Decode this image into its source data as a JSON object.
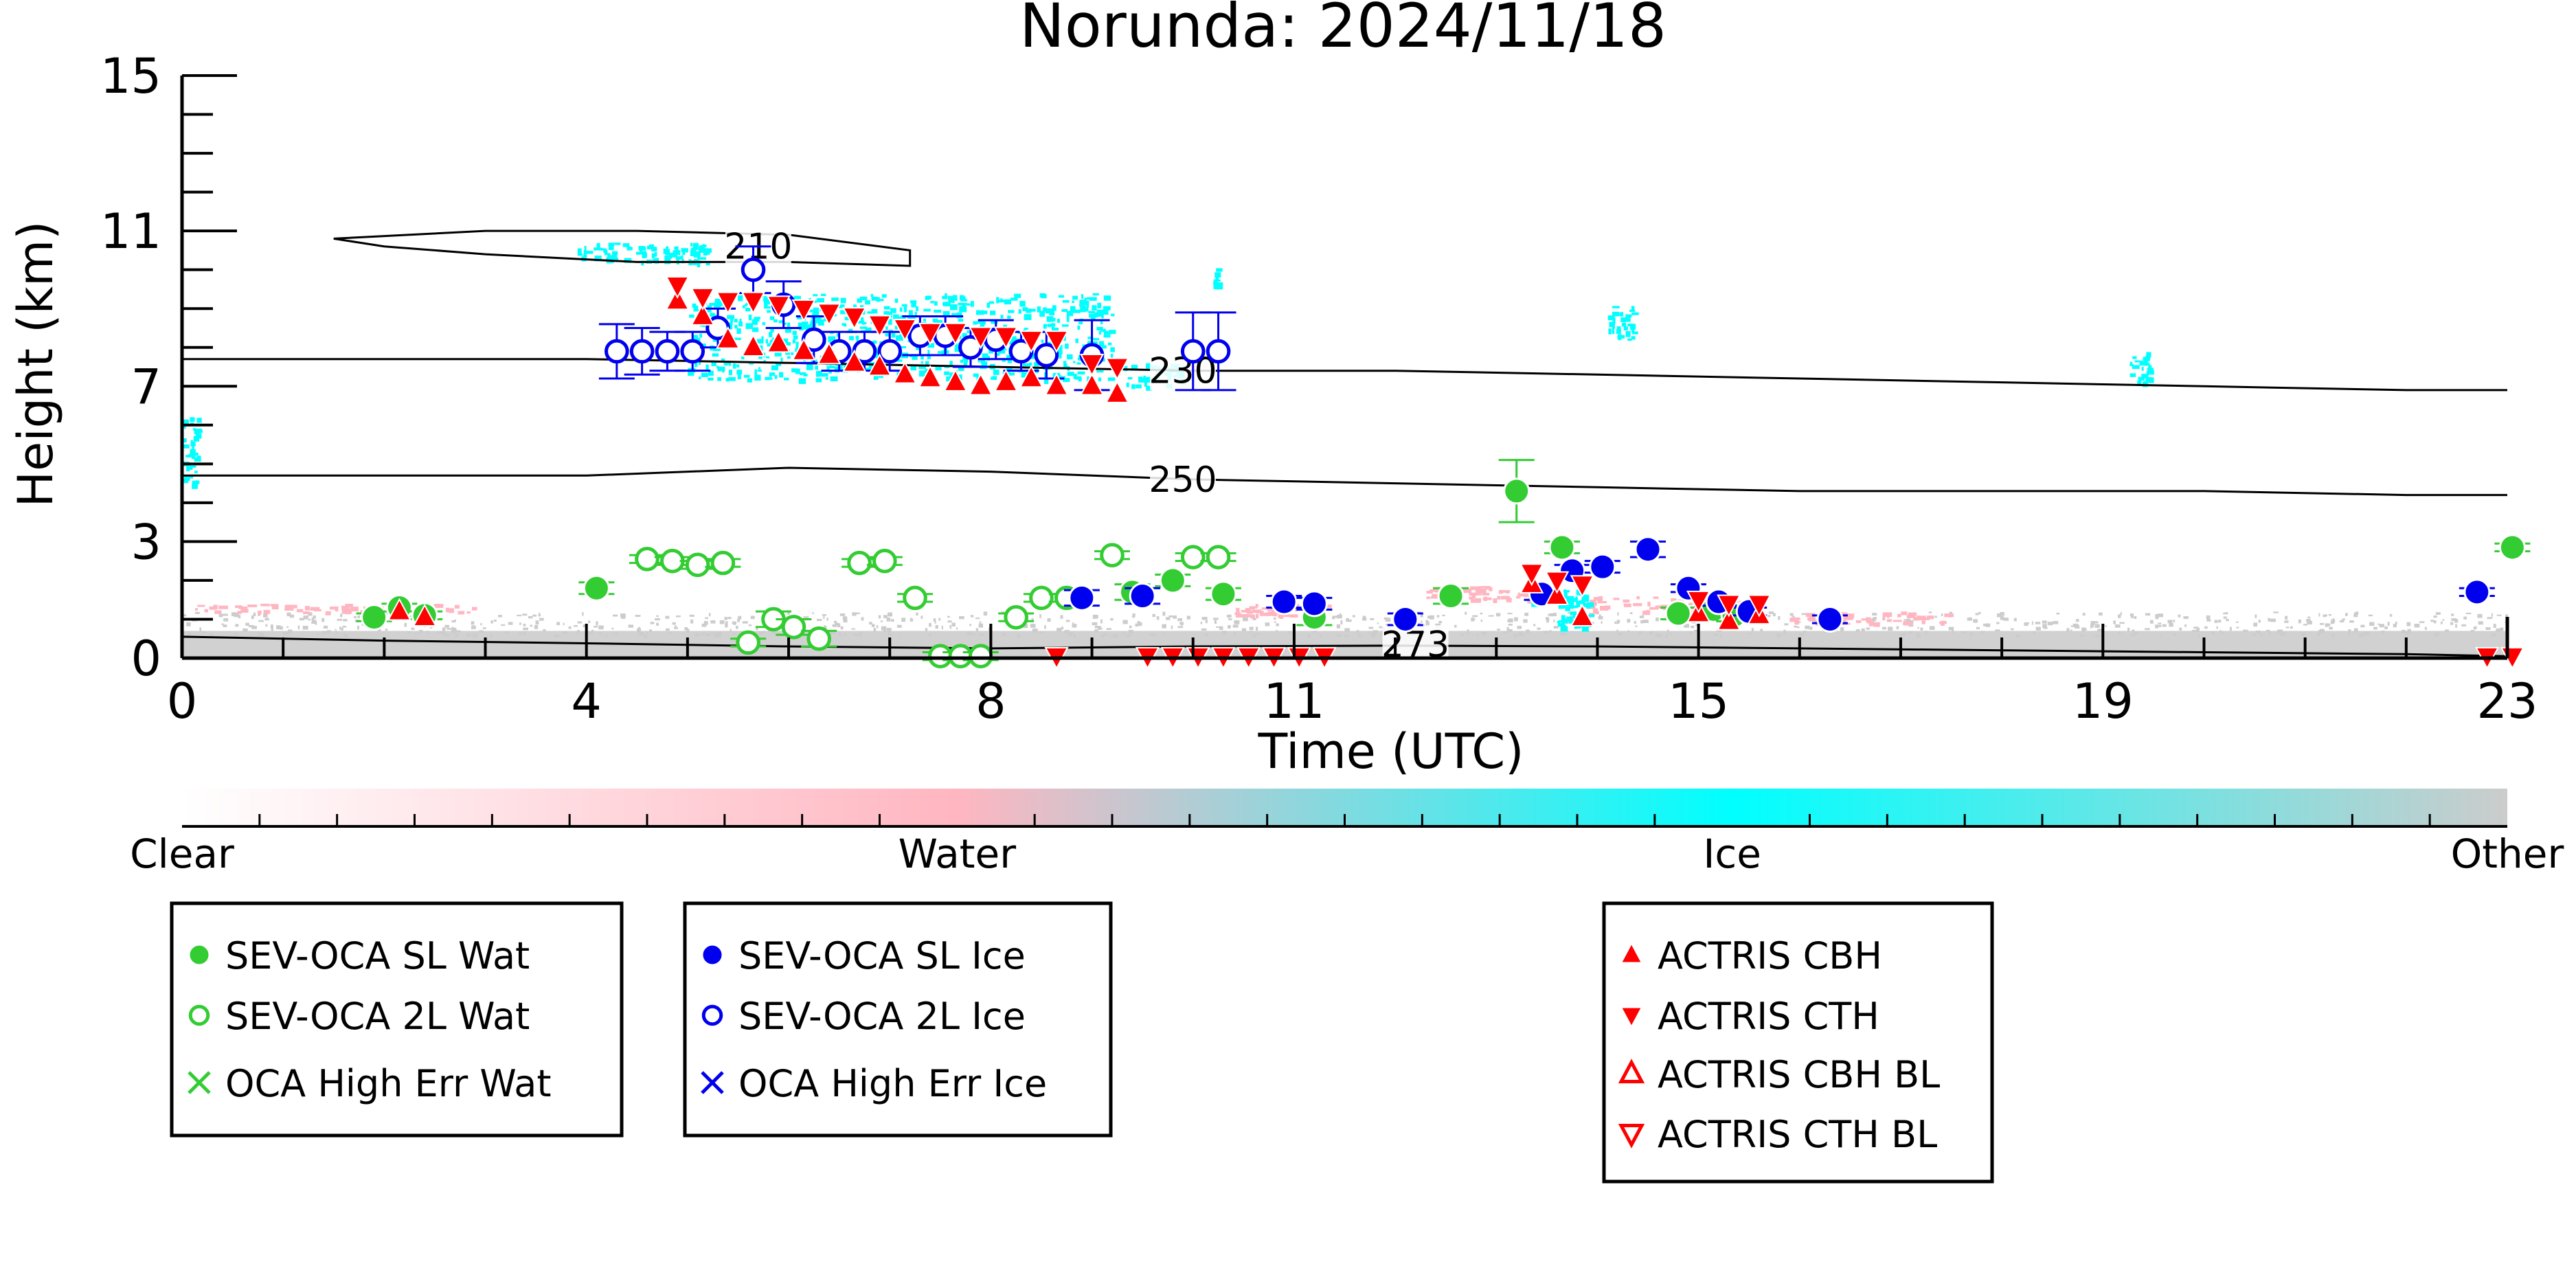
{
  "chart_data": {
    "type": "scatter",
    "title": "Norunda: 2024/11/18",
    "xlabel": "Time (UTC)",
    "ylabel": "Height (km)",
    "xlim": [
      0,
      23
    ],
    "ylim": [
      0,
      15
    ],
    "x_ticks": [
      0,
      4,
      8,
      11,
      15,
      19,
      23
    ],
    "y_ticks": [
      0,
      3,
      7,
      11,
      15
    ],
    "grid": false,
    "colors": {
      "water": "#33cc33",
      "ice": "#0000ee",
      "actris": "#ff0000",
      "mask_water": "#ffb6c1",
      "mask_ice": "#00ffff",
      "mask_other": "#cccccc"
    },
    "mask_colorbar": {
      "labels": [
        "Clear",
        "Water",
        "Ice",
        "Other"
      ],
      "colors": [
        "#ffffff",
        "#ffb6c1",
        "#00ffff",
        "#cccccc"
      ]
    },
    "contours": [
      {
        "label": "210",
        "label_x": 5.7,
        "label_y": 10.6,
        "closed": true,
        "points": [
          [
            1.5,
            10.8
          ],
          [
            3.0,
            11.0
          ],
          [
            4.5,
            11.0
          ],
          [
            6.0,
            10.9
          ],
          [
            7.2,
            10.5
          ],
          [
            7.2,
            10.1
          ],
          [
            6.0,
            10.2
          ],
          [
            4.5,
            10.2
          ],
          [
            3.0,
            10.4
          ],
          [
            2.0,
            10.6
          ],
          [
            1.5,
            10.8
          ]
        ]
      },
      {
        "label": "230",
        "label_x": 9.9,
        "label_y": 7.4,
        "closed": false,
        "points": [
          [
            0,
            7.7
          ],
          [
            2,
            7.7
          ],
          [
            4,
            7.7
          ],
          [
            6,
            7.6
          ],
          [
            8,
            7.5
          ],
          [
            10,
            7.4
          ],
          [
            12,
            7.4
          ],
          [
            14,
            7.3
          ],
          [
            16,
            7.2
          ],
          [
            18,
            7.1
          ],
          [
            20,
            7.0
          ],
          [
            22,
            6.9
          ],
          [
            23,
            6.9
          ]
        ]
      },
      {
        "label": "250",
        "label_x": 9.9,
        "label_y": 4.6,
        "closed": false,
        "points": [
          [
            0,
            4.7
          ],
          [
            2,
            4.7
          ],
          [
            4,
            4.7
          ],
          [
            6,
            4.9
          ],
          [
            8,
            4.8
          ],
          [
            10,
            4.6
          ],
          [
            12,
            4.5
          ],
          [
            14,
            4.4
          ],
          [
            16,
            4.3
          ],
          [
            18,
            4.3
          ],
          [
            20,
            4.3
          ],
          [
            22,
            4.2
          ],
          [
            23,
            4.2
          ]
        ]
      },
      {
        "label": "273",
        "label_x": 12.2,
        "label_y": 0.35,
        "closed": false,
        "points": [
          [
            0,
            0.55
          ],
          [
            2,
            0.45
          ],
          [
            4,
            0.38
          ],
          [
            6,
            0.3
          ],
          [
            8,
            0.25
          ],
          [
            10,
            0.3
          ],
          [
            12,
            0.32
          ],
          [
            14,
            0.3
          ],
          [
            16,
            0.25
          ],
          [
            18,
            0.2
          ],
          [
            20,
            0.15
          ],
          [
            22,
            0.1
          ],
          [
            23,
            0.05
          ]
        ]
      }
    ],
    "series": [
      {
        "name": "SEV-OCA SL Wat",
        "marker": "filled-circle",
        "color": "#33cc33",
        "points": [
          [
            1.9,
            1.05,
            0.1
          ],
          [
            2.15,
            1.3,
            0.1
          ],
          [
            2.4,
            1.1,
            0.1
          ],
          [
            4.1,
            1.8,
            0.15
          ],
          [
            9.4,
            1.7,
            0.2
          ],
          [
            9.8,
            2.0,
            0.15
          ],
          [
            10.3,
            1.65,
            0.15
          ],
          [
            11.2,
            1.05,
            0.2
          ],
          [
            12.55,
            1.6,
            0.2
          ],
          [
            13.2,
            4.3,
            0.8
          ],
          [
            13.65,
            2.85,
            0.15
          ],
          [
            14.8,
            1.15,
            0.15
          ],
          [
            15.15,
            1.25,
            0.15
          ],
          [
            15.35,
            1.1,
            0.15
          ],
          [
            23.05,
            2.85,
            0.1
          ]
        ]
      },
      {
        "name": "SEV-OCA 2L Wat",
        "marker": "open-circle",
        "color": "#33cc33",
        "points": [
          [
            4.6,
            2.55,
            0.1
          ],
          [
            4.85,
            2.5,
            0.1
          ],
          [
            5.1,
            2.4,
            0.1
          ],
          [
            5.35,
            2.45,
            0.1
          ],
          [
            5.6,
            0.4,
            0.1
          ],
          [
            5.85,
            1.0,
            0.2
          ],
          [
            6.05,
            0.8,
            0.2
          ],
          [
            6.3,
            0.5,
            0.2
          ],
          [
            6.7,
            2.45,
            0.1
          ],
          [
            6.95,
            2.5,
            0.1
          ],
          [
            7.25,
            1.55,
            0.1
          ],
          [
            7.5,
            0.05,
            0.1
          ],
          [
            7.7,
            0.05,
            0.1
          ],
          [
            7.9,
            0.05,
            0.1
          ],
          [
            8.25,
            1.05,
            0.1
          ],
          [
            8.5,
            1.55,
            0.1
          ],
          [
            8.75,
            1.55,
            0.1
          ],
          [
            9.2,
            2.65,
            0.1
          ],
          [
            10.0,
            2.6,
            0.1
          ],
          [
            10.25,
            2.6,
            0.1
          ]
        ]
      },
      {
        "name": "OCA High Err Wat",
        "marker": "x",
        "color": "#33cc33",
        "points": []
      },
      {
        "name": "SEV-OCA SL Ice",
        "marker": "filled-circle",
        "color": "#0000ee",
        "points": [
          [
            8.9,
            1.55,
            0.2
          ],
          [
            9.5,
            1.6,
            0.2
          ],
          [
            10.9,
            1.45,
            0.15
          ],
          [
            11.2,
            1.4,
            0.15
          ],
          [
            12.1,
            1.0,
            0.15
          ],
          [
            13.45,
            1.65,
            0.15
          ],
          [
            13.75,
            2.25,
            0.15
          ],
          [
            14.05,
            2.35,
            0.15
          ],
          [
            14.5,
            2.8,
            0.2
          ],
          [
            14.9,
            1.8,
            0.1
          ],
          [
            15.2,
            1.45,
            0.1
          ],
          [
            15.5,
            1.2,
            0.1
          ],
          [
            16.3,
            1.0,
            0.1
          ],
          [
            22.7,
            1.7,
            0.1
          ]
        ]
      },
      {
        "name": "SEV-OCA 2L Ice",
        "marker": "open-circle",
        "color": "#0000ee",
        "points": [
          [
            4.3,
            7.9,
            0.7
          ],
          [
            4.55,
            7.9,
            0.6
          ],
          [
            4.8,
            7.9,
            0.5
          ],
          [
            5.05,
            7.9,
            0.5
          ],
          [
            5.3,
            8.5,
            0.5
          ],
          [
            5.65,
            10.0,
            0.6
          ],
          [
            5.95,
            9.1,
            0.6
          ],
          [
            6.25,
            8.2,
            0.6
          ],
          [
            6.5,
            7.9,
            0.5
          ],
          [
            6.75,
            7.9,
            0.5
          ],
          [
            7.0,
            7.9,
            0.5
          ],
          [
            7.3,
            8.3,
            0.5
          ],
          [
            7.55,
            8.3,
            0.5
          ],
          [
            7.8,
            8.0,
            0.5
          ],
          [
            8.05,
            8.2,
            0.5
          ],
          [
            8.3,
            7.9,
            0.5
          ],
          [
            8.55,
            7.8,
            0.6
          ],
          [
            9.0,
            7.8,
            0.9
          ],
          [
            10.0,
            7.9,
            1.0
          ],
          [
            10.25,
            7.9,
            1.0
          ]
        ]
      },
      {
        "name": "OCA High Err Ice",
        "marker": "x",
        "color": "#0000ee",
        "points": []
      },
      {
        "name": "ACTRIS CBH",
        "marker": "triangle-up-filled",
        "color": "#ff0000",
        "points": [
          [
            2.15,
            1.2
          ],
          [
            2.4,
            1.05
          ],
          [
            4.9,
            9.2
          ],
          [
            5.15,
            8.8
          ],
          [
            5.4,
            8.2
          ],
          [
            5.65,
            8.0
          ],
          [
            5.9,
            8.1
          ],
          [
            6.15,
            7.9
          ],
          [
            6.4,
            7.8
          ],
          [
            6.65,
            7.6
          ],
          [
            6.9,
            7.5
          ],
          [
            7.15,
            7.3
          ],
          [
            7.4,
            7.2
          ],
          [
            7.65,
            7.1
          ],
          [
            7.9,
            7.0
          ],
          [
            8.15,
            7.1
          ],
          [
            8.4,
            7.2
          ],
          [
            8.65,
            7.0
          ],
          [
            9.0,
            7.0
          ],
          [
            9.25,
            6.8
          ],
          [
            13.35,
            1.9
          ],
          [
            13.6,
            1.6
          ],
          [
            13.85,
            1.05
          ],
          [
            15.0,
            1.15
          ],
          [
            15.3,
            0.95
          ],
          [
            15.6,
            1.1
          ]
        ]
      },
      {
        "name": "ACTRIS CTH",
        "marker": "triangle-down-filled",
        "color": "#ff0000",
        "points": [
          [
            4.9,
            9.6
          ],
          [
            5.15,
            9.3
          ],
          [
            5.4,
            9.2
          ],
          [
            5.65,
            9.2
          ],
          [
            5.9,
            9.1
          ],
          [
            6.15,
            9.0
          ],
          [
            6.4,
            8.9
          ],
          [
            6.65,
            8.8
          ],
          [
            6.9,
            8.6
          ],
          [
            7.15,
            8.5
          ],
          [
            7.4,
            8.4
          ],
          [
            7.65,
            8.4
          ],
          [
            7.9,
            8.3
          ],
          [
            8.15,
            8.3
          ],
          [
            8.4,
            8.2
          ],
          [
            8.65,
            8.2
          ],
          [
            9.0,
            7.6
          ],
          [
            9.25,
            7.5
          ],
          [
            13.35,
            2.2
          ],
          [
            13.6,
            2.0
          ],
          [
            13.85,
            1.9
          ],
          [
            15.0,
            1.5
          ],
          [
            15.3,
            1.4
          ],
          [
            15.6,
            1.4
          ],
          [
            8.65,
            0.05
          ],
          [
            9.55,
            0.05
          ],
          [
            9.8,
            0.05
          ],
          [
            10.05,
            0.05
          ],
          [
            10.3,
            0.05
          ],
          [
            10.55,
            0.05
          ],
          [
            10.8,
            0.05
          ],
          [
            11.05,
            0.05
          ],
          [
            11.3,
            0.05
          ],
          [
            22.8,
            0.05
          ],
          [
            23.05,
            0.05
          ]
        ]
      },
      {
        "name": "ACTRIS CBH BL",
        "marker": "triangle-up-open",
        "color": "#ff0000",
        "points": []
      },
      {
        "name": "ACTRIS CTH BL",
        "marker": "triangle-down-open",
        "color": "#ff0000",
        "points": []
      }
    ]
  },
  "legend_groups": [
    [
      "SEV-OCA SL Wat",
      "SEV-OCA 2L Wat",
      "OCA High Err Wat"
    ],
    [
      "SEV-OCA SL Ice",
      "SEV-OCA 2L Ice",
      "OCA High Err Ice"
    ],
    [
      "ACTRIS CBH",
      "ACTRIS CTH",
      "ACTRIS CBH BL",
      "ACTRIS CTH BL"
    ]
  ]
}
